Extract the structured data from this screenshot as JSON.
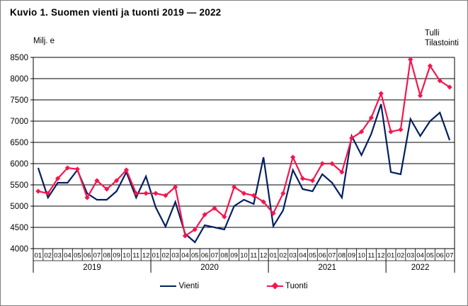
{
  "figure": {
    "title": "Kuvio 1. Suomen vienti ja tuonti 2019 — 2022",
    "unit_label": "Milj. e",
    "source_line1": "Tulli",
    "source_line2": "Tilastointi"
  },
  "chart_data": {
    "type": "line",
    "title": "Kuvio 1. Suomen vienti ja tuonti 2019 — 2022",
    "ylabel": "Milj. e",
    "ylim": [
      4000,
      8500
    ],
    "ytick_step": 500,
    "ytick_labels": [
      "8500",
      "8000",
      "7500",
      "7000",
      "6500",
      "6000",
      "5500",
      "5000",
      "4500",
      "4000"
    ],
    "grid": "horizontal",
    "legend_position": "bottom",
    "x_months": [
      "01",
      "02",
      "03",
      "04",
      "05",
      "06",
      "07",
      "08",
      "09",
      "10",
      "11",
      "12",
      "01",
      "02",
      "03",
      "04",
      "05",
      "06",
      "07",
      "08",
      "09",
      "10",
      "11",
      "12",
      "01",
      "02",
      "03",
      "04",
      "05",
      "06",
      "07",
      "08",
      "09",
      "10",
      "11",
      "12",
      "01",
      "02",
      "03",
      "04",
      "05",
      "06",
      "07"
    ],
    "year_groups": [
      {
        "label": "2019",
        "months": 12
      },
      {
        "label": "2020",
        "months": 12
      },
      {
        "label": "2021",
        "months": 12
      },
      {
        "label": "2022",
        "months": 7
      }
    ],
    "series": [
      {
        "name": "Vienti",
        "color": "#002060",
        "marker": "none",
        "values": [
          5900,
          5200,
          5550,
          5550,
          5850,
          5300,
          5150,
          5150,
          5350,
          5800,
          5200,
          5700,
          4970,
          4520,
          5100,
          4350,
          4150,
          4550,
          4500,
          4450,
          5000,
          5150,
          5050,
          6150,
          4530,
          4900,
          5850,
          5400,
          5350,
          5750,
          5550,
          5200,
          6650,
          6200,
          6700,
          7400,
          5800,
          5750,
          7050,
          6650,
          7000,
          7200,
          6550
        ]
      },
      {
        "name": "Tuonti",
        "color": "#f4164e",
        "marker": "diamond",
        "values": [
          5350,
          5300,
          5650,
          5900,
          5870,
          5200,
          5600,
          5400,
          5600,
          5850,
          5300,
          5300,
          5300,
          5250,
          5450,
          4300,
          4450,
          4800,
          4950,
          4750,
          5450,
          5300,
          5250,
          5100,
          4830,
          5300,
          6150,
          5650,
          5600,
          6000,
          6000,
          5800,
          6600,
          6750,
          7080,
          7650,
          6750,
          6800,
          8450,
          7600,
          8300,
          7950,
          7800
        ]
      }
    ]
  }
}
